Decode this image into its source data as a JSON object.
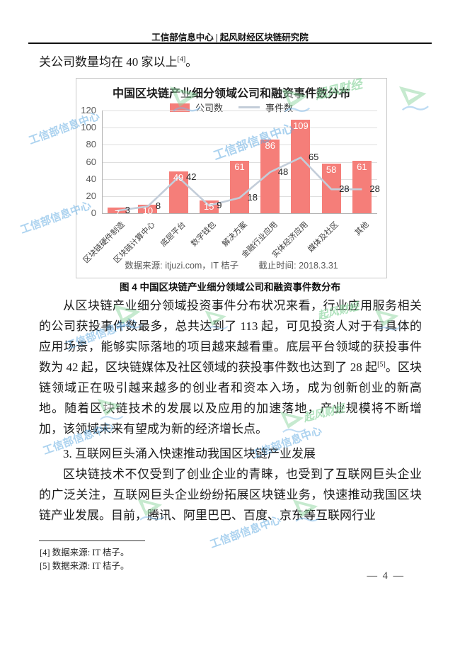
{
  "header": {
    "title": "工信部信息中心 | 起风财经区块链研究院"
  },
  "intro": {
    "text": "关公司数量均在 40 家以上",
    "footnote_ref": "[4]",
    "period": "。"
  },
  "chart_data": {
    "type": "bar",
    "title": "中国区块链产业细分领域公司和融资事件数分布",
    "categories": [
      "区块链硬件制造",
      "区块链计算中心",
      "底层平台",
      "数字钱包",
      "解决方案",
      "金融行业应用",
      "实体经济应用",
      "媒体及社区",
      "其他"
    ],
    "series": [
      {
        "name": "公司数",
        "kind": "bar",
        "color": "#f57e79",
        "values": [
          7,
          10,
          49,
          15,
          61,
          86,
          109,
          58,
          61
        ]
      },
      {
        "name": "事件数",
        "kind": "line",
        "color": "#c3cdd9",
        "values": [
          3,
          8,
          42,
          9,
          18,
          48,
          65,
          28,
          28
        ]
      }
    ],
    "ylim": [
      0,
      120
    ],
    "yticks": [
      0,
      20,
      40,
      60,
      80,
      100,
      120
    ],
    "grid": true,
    "legend_position": "top",
    "source": "数据来源: itjuzi.com，IT 桔子",
    "cutoff": "截止时间: 2018.3.31"
  },
  "caption": "图 4 中国区块链产业细分领域公司和融资事件数分布",
  "body": {
    "p1_a": "从区块链产业细分领域投资事件分布状况来看，行业应用服务相关的公司获投事件数最多，总共达到了 113 起，可见投资人对于有具体的应用场景，能够实际落地的项目越来越看重。底层平台领域的获投事件数为 42 起，区块链媒体及社区领域的获投事件数也达到了 28 起",
    "p1_ref": "[5]",
    "p1_b": "。区块链领域正在吸引越来越多的创业者和资本入场，成为创新创业的新高地。随着区块链技术的发展以及应用的加速落地，产业规模将不断增加，该领域未来有望成为新的经济增长点。",
    "heading": "3. 互联网巨头涌入快速推动我国区块链产业发展",
    "p2": "区块链技术不仅受到了创业企业的青睐，也受到了互联网巨头企业的广泛关注，互联网巨头企业纷纷拓展区块链业务，快速推动我国区块链产业发展。目前，腾讯、阿里巴巴、百度、京东等互联网行业"
  },
  "footnotes": {
    "fn4": "[4] 数据来源: IT 桔子。",
    "fn5": "[5] 数据来源: IT 桔子。"
  },
  "page_number": "— 4 —",
  "watermarks": {
    "blue_text": "工信部信息中心",
    "green_text": "起风财经"
  }
}
